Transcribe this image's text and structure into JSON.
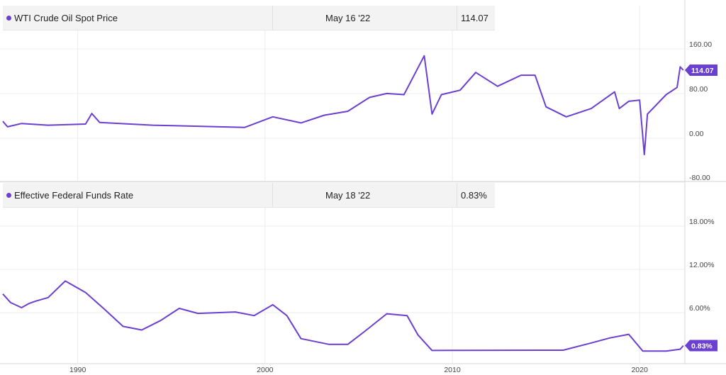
{
  "accent_color": "#6a3fd1",
  "legends": [
    {
      "name": "WTI Crude Oil Spot Price",
      "date": "May 16 '22",
      "value": "114.07"
    },
    {
      "name": "Effective Federal Funds Rate",
      "date": "May 18 '22",
      "value": "0.83%"
    }
  ],
  "chart_data": [
    {
      "type": "line",
      "title": "",
      "xlabel": "",
      "ylabel": "",
      "x_ticks": [
        "1990",
        "2000",
        "2010",
        "2020"
      ],
      "y_ticks": [
        "160.00",
        "80.00",
        "0.00",
        "-80.00"
      ],
      "ylim": [
        -80,
        160
      ],
      "xlim": [
        "1986-01",
        "2022-06"
      ],
      "grid": true,
      "last_value_label": "114.07",
      "series": [
        {
          "name": "WTI Crude Oil Spot Price",
          "x": [
            "1986-01",
            "1986-04",
            "1987-01",
            "1988-06",
            "1990-06",
            "1990-10",
            "1991-03",
            "1994-01",
            "1998-12",
            "2000-06",
            "2001-12",
            "2003-03",
            "2004-06",
            "2005-08",
            "2006-07",
            "2007-06",
            "2008-07",
            "2008-12",
            "2009-06",
            "2010-06",
            "2011-04",
            "2012-06",
            "2013-09",
            "2014-06",
            "2015-01",
            "2016-02",
            "2017-06",
            "2018-09",
            "2018-12",
            "2019-06",
            "2020-01",
            "2020-04",
            "2020-06",
            "2021-06",
            "2022-01",
            "2022-03",
            "2022-05"
          ],
          "values": [
            22,
            12,
            18,
            15,
            17,
            36,
            20,
            15,
            11,
            30,
            19,
            33,
            40,
            65,
            72,
            70,
            140,
            35,
            70,
            78,
            110,
            85,
            105,
            105,
            48,
            30,
            45,
            75,
            45,
            58,
            60,
            -38,
            35,
            70,
            83,
            120,
            114.07
          ]
        }
      ]
    },
    {
      "type": "line",
      "title": "",
      "xlabel": "",
      "ylabel": "",
      "x_ticks": [
        "1990",
        "2000",
        "2010",
        "2020"
      ],
      "y_ticks": [
        "18.00%",
        "12.00%",
        "6.00%"
      ],
      "ylim": [
        -0.5,
        19
      ],
      "xlim": [
        "1986-01",
        "2022-06"
      ],
      "grid": true,
      "last_value_label": "0.83%",
      "series": [
        {
          "name": "Effective Federal Funds Rate",
          "x": [
            "1986-01",
            "1986-06",
            "1987-01",
            "1987-06",
            "1987-10",
            "1988-06",
            "1989-05",
            "1990-06",
            "1991-06",
            "1992-06",
            "1993-06",
            "1994-06",
            "1995-06",
            "1996-06",
            "1998-06",
            "1999-06",
            "2000-06",
            "2001-03",
            "2001-12",
            "2003-06",
            "2004-06",
            "2005-06",
            "2006-07",
            "2007-08",
            "2008-03",
            "2008-12",
            "2010-06",
            "2015-12",
            "2017-06",
            "2018-06",
            "2019-06",
            "2020-03",
            "2021-06",
            "2022-03",
            "2022-05"
          ],
          "values": [
            8.0,
            6.8,
            6.1,
            6.7,
            7.0,
            7.5,
            9.8,
            8.2,
            5.9,
            3.5,
            3.0,
            4.3,
            6.0,
            5.3,
            5.5,
            5.0,
            6.5,
            5.0,
            1.8,
            1.0,
            1.0,
            3.0,
            5.25,
            5.0,
            2.3,
            0.16,
            0.18,
            0.2,
            1.2,
            1.9,
            2.4,
            0.08,
            0.08,
            0.33,
            0.83
          ]
        }
      ]
    }
  ]
}
